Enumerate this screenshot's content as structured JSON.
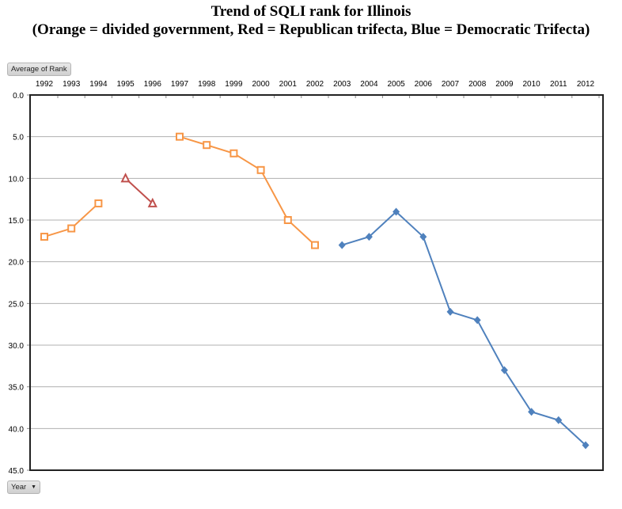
{
  "chart_data": {
    "type": "line",
    "title": "Trend of SQLI rank for Illinois",
    "subtitle": "(Orange = divided  government, Red = Republican  trifecta, Blue = Democratic Trifecta)",
    "x": [
      1992,
      1993,
      1994,
      1995,
      1996,
      1997,
      1998,
      1999,
      2000,
      2001,
      2002,
      2003,
      2004,
      2005,
      2006,
      2007,
      2008,
      2009,
      2010,
      2011,
      2012
    ],
    "x_tick_labels": [
      "1992",
      "1993",
      "1994",
      "1995",
      "1996",
      "1997",
      "1998",
      "1999",
      "2000",
      "2001",
      "2002",
      "2003",
      "2004",
      "2005",
      "2006",
      "2007",
      "2008",
      "2009",
      "2010",
      "2011",
      "2012"
    ],
    "y_tick_labels": [
      "0.0",
      "5.0",
      "10.0",
      "15.0",
      "20.0",
      "25.0",
      "30.0",
      "35.0",
      "40.0",
      "45.0"
    ],
    "ylim": [
      0,
      45
    ],
    "y_inverted": true,
    "grid": true,
    "series": [
      {
        "name": "Divided government",
        "color": "#F79646",
        "marker": "square-open",
        "x": [
          1992,
          1993,
          1994
        ],
        "values": [
          17,
          16,
          13
        ]
      },
      {
        "name": "Republican trifecta",
        "color": "#C0504D",
        "marker": "triangle-open",
        "x": [
          1995,
          1996
        ],
        "values": [
          10,
          13
        ]
      },
      {
        "name": "Divided government",
        "color": "#F79646",
        "marker": "square-open",
        "x": [
          1997,
          1998,
          1999,
          2000,
          2001,
          2002
        ],
        "values": [
          5,
          6,
          7,
          9,
          15,
          18
        ]
      },
      {
        "name": "Democratic trifecta",
        "color": "#4F81BD",
        "marker": "diamond",
        "x": [
          2003,
          2004,
          2005,
          2006,
          2007,
          2008,
          2009,
          2010,
          2011,
          2012
        ],
        "values": [
          18,
          17,
          14,
          17,
          26,
          27,
          33,
          38,
          39,
          42
        ]
      }
    ]
  },
  "controls": {
    "value_field": "Average of Rank",
    "axis_field": "Year",
    "dropdown_icon": "chevron-down-icon"
  }
}
